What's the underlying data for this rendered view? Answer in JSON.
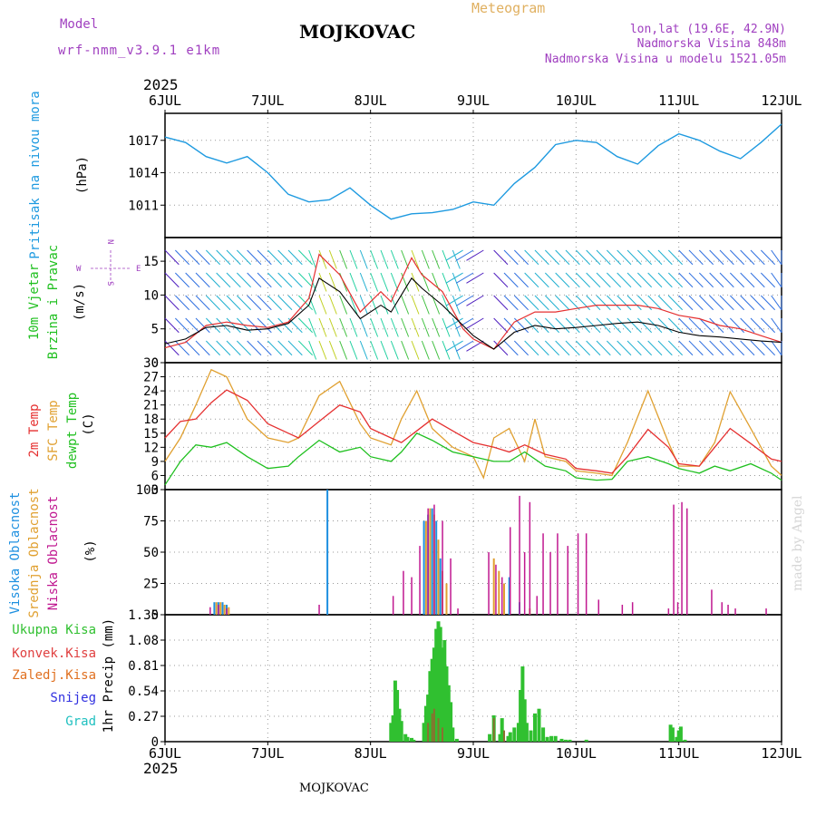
{
  "header": {
    "model_label": "Model",
    "model_name": "wrf-nmm_v3.9.1 e1km",
    "title": "MOJKOVAC",
    "meteogram_label": "Meteogram",
    "coords": "lon,lat (19.6E, 42.9N)",
    "elevation": "Nadmorska Visina 848m",
    "model_elevation": "Nadmorska Visina u modelu 1521.05m",
    "year_top": "2025",
    "year_bottom": "2025",
    "footer_title": "MOJKOVAC",
    "watermark": "made by Angel"
  },
  "colors": {
    "pressure": "#1e9ae0",
    "wind_speed": "#000000",
    "gust": "#e53030",
    "temp2m": "#e53030",
    "sfc_temp": "#e0a030",
    "dewpt": "#20c020",
    "high_cloud": "#1e90e0",
    "mid_cloud": "#e0a030",
    "low_cloud": "#c01890",
    "total_precip": "#30c030",
    "conv_precip": "#e04040",
    "frozen_precip": "#e07020",
    "snow": "#3030e0",
    "hail": "#20c0c0",
    "purple_label": "#a040c0"
  },
  "chart_data": [
    {
      "type": "line",
      "panel": "pressure",
      "ylabel_lines": [
        "Pritisak na nivou mora",
        "(hPa)"
      ],
      "x_tick_labels": [
        "6JUL",
        "7JUL",
        "8JUL",
        "9JUL",
        "10JUL",
        "11JUL",
        "12JUL"
      ],
      "ylim": [
        1008,
        1019.5
      ],
      "yticks": [
        1011,
        1014,
        1017
      ],
      "grid": true,
      "series": [
        {
          "x": [
            0,
            0.2,
            0.4,
            0.6,
            0.8,
            1.0,
            1.2,
            1.4,
            1.6,
            1.8,
            2.0,
            2.2,
            2.4,
            2.6,
            2.8,
            3.0,
            3.2,
            3.4,
            3.6,
            3.8,
            4.0,
            4.2,
            4.4,
            4.6,
            4.8,
            5.0,
            5.2,
            5.4,
            5.6,
            5.8,
            6.0
          ],
          "values": [
            1017.3,
            1016.8,
            1015.5,
            1014.9,
            1015.5,
            1014.0,
            1012.0,
            1011.3,
            1011.5,
            1012.6,
            1011.0,
            1009.7,
            1010.2,
            1010.3,
            1010.6,
            1011.3,
            1011.0,
            1013.0,
            1014.5,
            1016.6,
            1017.0,
            1016.8,
            1015.5,
            1014.8,
            1016.5,
            1017.6,
            1017.0,
            1016.0,
            1015.3,
            1016.8,
            1018.5
          ]
        }
      ]
    },
    {
      "type": "line",
      "panel": "wind",
      "ylabel_lines": [
        "10m Vjetar",
        "Brzina i Pravac",
        "(m/s)"
      ],
      "compass": {
        "n": "N",
        "s": "S",
        "e": "E",
        "w": "W"
      },
      "ylim": [
        0,
        18.5
      ],
      "yticks": [
        0,
        5,
        10,
        15
      ],
      "grid": true,
      "series": [
        {
          "name": "speed",
          "x": [
            0,
            0.2,
            0.4,
            0.6,
            0.8,
            1.0,
            1.2,
            1.4,
            1.5,
            1.7,
            1.9,
            2.1,
            2.2,
            2.4,
            2.5,
            2.7,
            2.9,
            3.0,
            3.2,
            3.4,
            3.6,
            3.8,
            4.0,
            4.2,
            4.4,
            4.6,
            4.8,
            5.0,
            5.2,
            5.4,
            5.6,
            5.8,
            6.0
          ],
          "values": [
            2.8,
            3.5,
            5.2,
            5.5,
            4.8,
            5.0,
            5.8,
            8.5,
            12.5,
            10.5,
            6.5,
            8.5,
            7.5,
            12.5,
            11.0,
            8.5,
            5.5,
            4.0,
            2.0,
            4.5,
            5.5,
            5.0,
            5.2,
            5.5,
            5.8,
            6.0,
            5.5,
            4.5,
            4.0,
            3.8,
            3.5,
            3.2,
            3.0
          ]
        },
        {
          "name": "gust",
          "x": [
            0,
            0.2,
            0.4,
            0.6,
            0.8,
            1.0,
            1.2,
            1.4,
            1.5,
            1.7,
            1.9,
            2.1,
            2.2,
            2.4,
            2.5,
            2.7,
            2.9,
            3.0,
            3.2,
            3.4,
            3.6,
            3.8,
            4.0,
            4.2,
            4.4,
            4.6,
            4.8,
            5.0,
            5.2,
            5.4,
            5.6,
            5.8,
            6.0
          ],
          "values": [
            2.2,
            3.0,
            5.5,
            6.0,
            5.5,
            5.2,
            6.0,
            9.5,
            16.0,
            13.0,
            7.5,
            10.5,
            9.0,
            15.5,
            13.0,
            10.5,
            5.0,
            3.5,
            2.0,
            6.0,
            7.5,
            7.5,
            8.0,
            8.5,
            8.5,
            8.5,
            8.0,
            7.0,
            6.5,
            5.5,
            5.0,
            4.0,
            3.0
          ]
        }
      ]
    },
    {
      "type": "line",
      "panel": "temperature",
      "ylabel_lines": [
        "2m Temp",
        "SFC Temp",
        "dewpt Temp",
        "(C)"
      ],
      "ylim": [
        3,
        30
      ],
      "yticks": [
        3,
        6,
        9,
        12,
        15,
        18,
        21,
        24,
        27,
        30
      ],
      "grid": true,
      "series": [
        {
          "name": "2m Temp",
          "x": [
            0,
            0.15,
            0.3,
            0.45,
            0.6,
            0.8,
            1.0,
            1.2,
            1.3,
            1.5,
            1.7,
            1.9,
            2.0,
            2.2,
            2.3,
            2.45,
            2.6,
            2.8,
            3.0,
            3.2,
            3.35,
            3.5,
            3.7,
            3.9,
            4.0,
            4.2,
            4.35,
            4.5,
            4.7,
            4.9,
            5.0,
            5.2,
            5.35,
            5.5,
            5.7,
            5.9,
            6.0
          ],
          "values": [
            14,
            17.5,
            18,
            21.5,
            24.2,
            22,
            17,
            15,
            14,
            17.5,
            21,
            19.5,
            16,
            14,
            13,
            15.5,
            18,
            15.5,
            13,
            12,
            11,
            12.5,
            10.5,
            9.5,
            7.5,
            7,
            6.5,
            10,
            15.8,
            12,
            8.5,
            8,
            12,
            16,
            12.8,
            9.5,
            9
          ]
        },
        {
          "name": "SFC Temp",
          "x": [
            0,
            0.15,
            0.3,
            0.45,
            0.6,
            0.8,
            1.0,
            1.2,
            1.3,
            1.5,
            1.7,
            1.9,
            2.0,
            2.2,
            2.3,
            2.45,
            2.6,
            2.8,
            3.0,
            3.1,
            3.2,
            3.35,
            3.5,
            3.6,
            3.7,
            3.9,
            4.0,
            4.2,
            4.35,
            4.5,
            4.7,
            4.9,
            5.0,
            5.2,
            5.35,
            5.5,
            5.7,
            5.9,
            6.0
          ],
          "values": [
            9,
            14,
            21,
            28.5,
            27,
            18,
            14,
            13,
            14,
            23,
            26,
            17,
            14,
            12.5,
            18,
            24,
            16,
            12,
            10,
            5.5,
            14,
            16,
            9,
            18,
            10,
            9,
            7,
            6.5,
            6,
            13,
            24,
            13,
            8,
            8,
            13,
            23.8,
            16,
            8,
            6
          ]
        },
        {
          "name": "dewpt Temp",
          "x": [
            0,
            0.15,
            0.3,
            0.45,
            0.6,
            0.8,
            1.0,
            1.2,
            1.3,
            1.5,
            1.7,
            1.9,
            2.0,
            2.2,
            2.3,
            2.45,
            2.6,
            2.8,
            3.0,
            3.2,
            3.35,
            3.5,
            3.7,
            3.9,
            4.0,
            4.2,
            4.35,
            4.5,
            4.7,
            4.9,
            5.0,
            5.2,
            5.35,
            5.5,
            5.7,
            5.9,
            6.0
          ],
          "values": [
            4,
            9,
            12.5,
            12,
            13,
            10,
            7.5,
            8,
            10,
            13.5,
            11,
            12,
            10,
            9,
            11,
            15,
            13.5,
            11,
            10,
            9,
            9,
            11,
            8,
            7,
            5.5,
            5,
            5.2,
            9,
            10,
            8.5,
            7.5,
            6.5,
            8,
            7,
            8.5,
            6.5,
            5
          ]
        }
      ]
    },
    {
      "type": "bar",
      "panel": "cloudiness",
      "ylabel_lines": [
        "Visoka Oblacnost",
        "Srednja Oblacnost",
        "Niska Oblacnost",
        "(%)"
      ],
      "ylim": [
        0,
        100
      ],
      "yticks": [
        0,
        25,
        50,
        75,
        100
      ],
      "grid": true,
      "series": [
        {
          "name": "Visoka Oblacnost",
          "x": [
            0.48,
            0.52,
            0.56,
            0.6,
            1.58,
            2.52,
            2.56,
            2.6,
            2.64,
            2.68,
            3.35,
            3.45
          ],
          "values": [
            10,
            10,
            10,
            8,
            100,
            75,
            80,
            85,
            75,
            45,
            30,
            10
          ]
        },
        {
          "name": "Srednja Oblacnost",
          "x": [
            0.5,
            0.54,
            0.58,
            0.62,
            2.54,
            2.58,
            2.62,
            2.66,
            2.7,
            2.74,
            3.2,
            3.25,
            3.3,
            3.55
          ],
          "values": [
            10,
            10,
            8,
            6,
            75,
            85,
            80,
            60,
            35,
            25,
            45,
            35,
            25,
            5
          ]
        },
        {
          "name": "Niska Oblacnost",
          "x": [
            0.44,
            0.52,
            0.6,
            1.5,
            2.22,
            2.32,
            2.4,
            2.48,
            2.56,
            2.62,
            2.7,
            2.78,
            2.85,
            3.15,
            3.22,
            3.28,
            3.36,
            3.45,
            3.5,
            3.55,
            3.62,
            3.68,
            3.75,
            3.82,
            3.92,
            4.02,
            4.1,
            4.22,
            4.45,
            4.55,
            4.9,
            4.95,
            4.99,
            5.03,
            5.08,
            5.32,
            5.42,
            5.48,
            5.55,
            5.85
          ],
          "values": [
            6,
            8,
            5,
            8,
            15,
            35,
            30,
            55,
            85,
            88,
            75,
            45,
            5,
            50,
            40,
            30,
            70,
            95,
            50,
            90,
            15,
            65,
            50,
            65,
            55,
            65,
            65,
            12,
            8,
            10,
            5,
            88,
            10,
            90,
            85,
            20,
            10,
            8,
            5,
            5
          ]
        }
      ]
    },
    {
      "type": "bar",
      "panel": "precipitation",
      "ylabel_lines": [
        "1hr Precip (mm)"
      ],
      "legend": [
        "Ukupna Kisa",
        "Konvek.Kisa",
        "Zaledj.Kisa",
        "Snijeg",
        "Grad"
      ],
      "ylim": [
        0,
        1.35
      ],
      "yticks": [
        0,
        0.27,
        0.54,
        0.81,
        1.08,
        1.35
      ],
      "grid": true,
      "series": [
        {
          "name": "Ukupna Kisa",
          "x": [
            2.2,
            2.22,
            2.24,
            2.26,
            2.28,
            2.3,
            2.34,
            2.36,
            2.4,
            2.42,
            2.52,
            2.54,
            2.56,
            2.58,
            2.6,
            2.62,
            2.64,
            2.66,
            2.68,
            2.7,
            2.72,
            2.74,
            2.76,
            2.78,
            2.8,
            2.84,
            3.16,
            3.2,
            3.26,
            3.28,
            3.34,
            3.36,
            3.4,
            3.44,
            3.46,
            3.48,
            3.5,
            3.52,
            3.56,
            3.6,
            3.64,
            3.68,
            3.72,
            3.76,
            3.8,
            3.86,
            3.9,
            3.94,
            4.1,
            4.92,
            4.94,
            4.98,
            5.0,
            5.02,
            5.06
          ],
          "values": [
            0.2,
            0.28,
            0.65,
            0.55,
            0.35,
            0.22,
            0.08,
            0.05,
            0.04,
            0.02,
            0.2,
            0.38,
            0.5,
            0.75,
            0.88,
            1.0,
            1.2,
            1.28,
            1.22,
            1.0,
            1.08,
            0.8,
            0.6,
            0.42,
            0.15,
            0.03,
            0.08,
            0.28,
            0.08,
            0.25,
            0.06,
            0.1,
            0.15,
            0.2,
            0.55,
            0.8,
            0.45,
            0.2,
            0.12,
            0.3,
            0.35,
            0.15,
            0.05,
            0.06,
            0.06,
            0.03,
            0.02,
            0.02,
            0.02,
            0.18,
            0.15,
            0.05,
            0.12,
            0.16,
            0.02
          ]
        },
        {
          "name": "Konvek.Kisa",
          "x": [
            2.56,
            2.6,
            2.62,
            2.66,
            2.7,
            3.2,
            3.3
          ],
          "values": [
            0.2,
            0.3,
            0.35,
            0.25,
            0.15,
            0.25,
            0.12
          ]
        }
      ]
    }
  ]
}
